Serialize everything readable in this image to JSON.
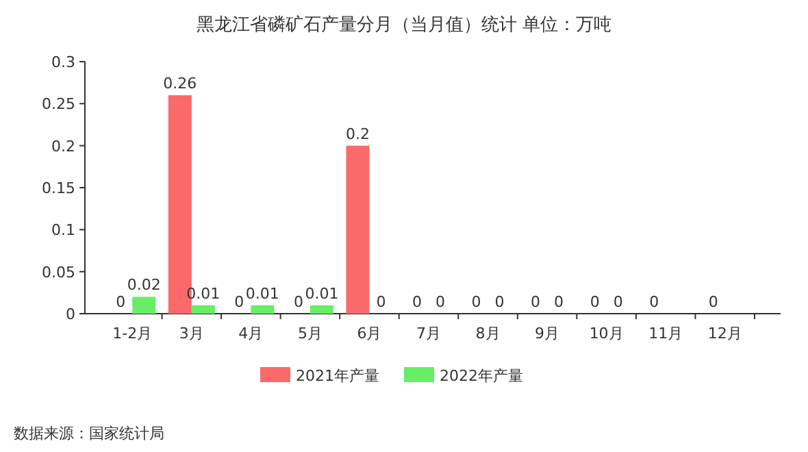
{
  "chart_data": {
    "type": "bar",
    "title": "黑龙江省磷矿石产量分月（当月值）统计 单位：万吨",
    "categories": [
      "1-2月",
      "3月",
      "4月",
      "5月",
      "6月",
      "7月",
      "8月",
      "9月",
      "10月",
      "11月",
      "12月"
    ],
    "series": [
      {
        "name": "2021年产量",
        "color": "#fa6a6a",
        "values": [
          0,
          0.26,
          0,
          0,
          0.2,
          0,
          0,
          0,
          0,
          0,
          0
        ]
      },
      {
        "name": "2022年产量",
        "color": "#66ee66",
        "values": [
          0.02,
          0.01,
          0.01,
          0.01,
          0,
          0,
          0,
          0,
          0,
          null,
          null
        ]
      }
    ],
    "ylim": [
      0,
      0.3
    ],
    "yticks": [
      0,
      0.05,
      0.1,
      0.15,
      0.2,
      0.25,
      0.3
    ],
    "data_labels": true,
    "legend": "bottom",
    "grid": false,
    "annotations": [
      "数据来源：国家统计局"
    ]
  }
}
